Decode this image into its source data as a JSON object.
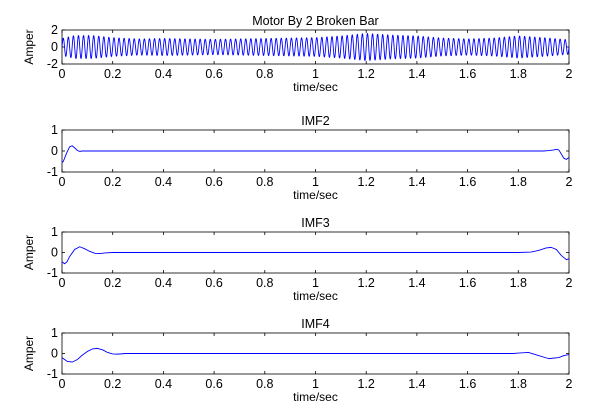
{
  "chart_data": [
    {
      "type": "line",
      "title": "Motor By 2 Broken Bar",
      "xlabel": "time/sec",
      "ylabel": "Amper",
      "xlim": [
        0,
        2
      ],
      "ylim": [
        -2,
        2
      ],
      "xticks": [
        "0",
        "0.2",
        "0.4",
        "0.6",
        "0.8",
        "1",
        "1.2",
        "1.4",
        "1.6",
        "1.8",
        "2"
      ],
      "yticks": [
        "-2",
        "0",
        "2"
      ],
      "grid": false,
      "line_color": "#0000ff",
      "series": [
        {
          "kind": "oscillation",
          "frequency_hz": 50,
          "amplitude_envelope": {
            "x": [
              0,
              0.05,
              0.12,
              0.2,
              0.3,
              0.4,
              0.5,
              0.6,
              0.7,
              0.8,
              0.9,
              1.0,
              1.1,
              1.2,
              1.3,
              1.4,
              1.5,
              1.6,
              1.7,
              1.8,
              1.9,
              2.0
            ],
            "amplitude": [
              1.0,
              1.35,
              1.35,
              1.1,
              0.95,
              1.0,
              0.95,
              0.9,
              0.95,
              1.0,
              1.05,
              1.1,
              1.3,
              1.6,
              1.4,
              1.3,
              1.05,
              0.95,
              1.05,
              1.3,
              1.1,
              0.85
            ]
          }
        }
      ]
    },
    {
      "type": "line",
      "title": "IMF2",
      "xlabel": "time/sec",
      "ylabel": "",
      "xlim": [
        0,
        2
      ],
      "ylim": [
        -1,
        1
      ],
      "xticks": [
        "0",
        "0.2",
        "0.4",
        "0.6",
        "0.8",
        "1",
        "1.2",
        "1.4",
        "1.6",
        "1.8",
        "2"
      ],
      "yticks": [
        "-1",
        "0",
        "1"
      ],
      "grid": false,
      "line_color": "#0000ff",
      "series": [
        {
          "x": [
            0,
            0.005,
            0.01,
            0.02,
            0.03,
            0.04,
            0.05,
            0.06,
            0.07,
            0.08,
            0.1,
            1.9,
            1.92,
            1.94,
            1.95,
            1.96,
            1.97,
            1.98,
            1.99,
            2.0
          ],
          "y": [
            -0.55,
            -0.5,
            -0.35,
            -0.05,
            0.2,
            0.25,
            0.15,
            0.03,
            -0.02,
            0,
            0,
            0,
            0.02,
            0.05,
            0.08,
            0.05,
            -0.15,
            -0.35,
            -0.4,
            -0.3
          ]
        }
      ]
    },
    {
      "type": "line",
      "title": "IMF3",
      "xlabel": "time/sec",
      "ylabel": "Amper",
      "xlim": [
        0,
        2
      ],
      "ylim": [
        -1,
        1
      ],
      "xticks": [
        "0",
        "0.2",
        "0.4",
        "0.6",
        "0.8",
        "1",
        "1.2",
        "1.4",
        "1.6",
        "1.8",
        "2"
      ],
      "yticks": [
        "-1",
        "0",
        "1"
      ],
      "grid": false,
      "line_color": "#0000ff",
      "series": [
        {
          "x": [
            0,
            0.01,
            0.02,
            0.03,
            0.05,
            0.07,
            0.09,
            0.11,
            0.13,
            0.15,
            0.17,
            0.2,
            1.8,
            1.85,
            1.88,
            1.91,
            1.93,
            1.95,
            1.97,
            1.99,
            2.0
          ],
          "y": [
            -0.45,
            -0.55,
            -0.45,
            -0.2,
            0.15,
            0.28,
            0.18,
            0.05,
            -0.04,
            -0.05,
            -0.02,
            0,
            0,
            0.02,
            0.1,
            0.22,
            0.25,
            0.15,
            -0.15,
            -0.35,
            -0.3
          ]
        }
      ]
    },
    {
      "type": "line",
      "title": "IMF4",
      "xlabel": "time/sec",
      "ylabel": "Amper",
      "xlim": [
        0,
        2
      ],
      "ylim": [
        -1,
        1
      ],
      "xticks": [
        "0",
        "0.2",
        "0.4",
        "0.6",
        "0.8",
        "1",
        "1.2",
        "1.4",
        "1.6",
        "1.8",
        "2"
      ],
      "yticks": [
        "-1",
        "0",
        "1"
      ],
      "grid": false,
      "line_color": "#0000ff",
      "series": [
        {
          "x": [
            0,
            0.02,
            0.04,
            0.06,
            0.08,
            0.1,
            0.12,
            0.14,
            0.16,
            0.18,
            0.2,
            0.22,
            0.25,
            1.78,
            1.8,
            1.84,
            1.88,
            1.92,
            1.96,
            1.98,
            2.0
          ],
          "y": [
            -0.2,
            -0.38,
            -0.42,
            -0.3,
            -0.08,
            0.1,
            0.22,
            0.25,
            0.18,
            0.05,
            -0.02,
            -0.03,
            0,
            0,
            0.02,
            0.05,
            -0.1,
            -0.25,
            -0.2,
            -0.1,
            -0.05
          ]
        }
      ]
    }
  ]
}
